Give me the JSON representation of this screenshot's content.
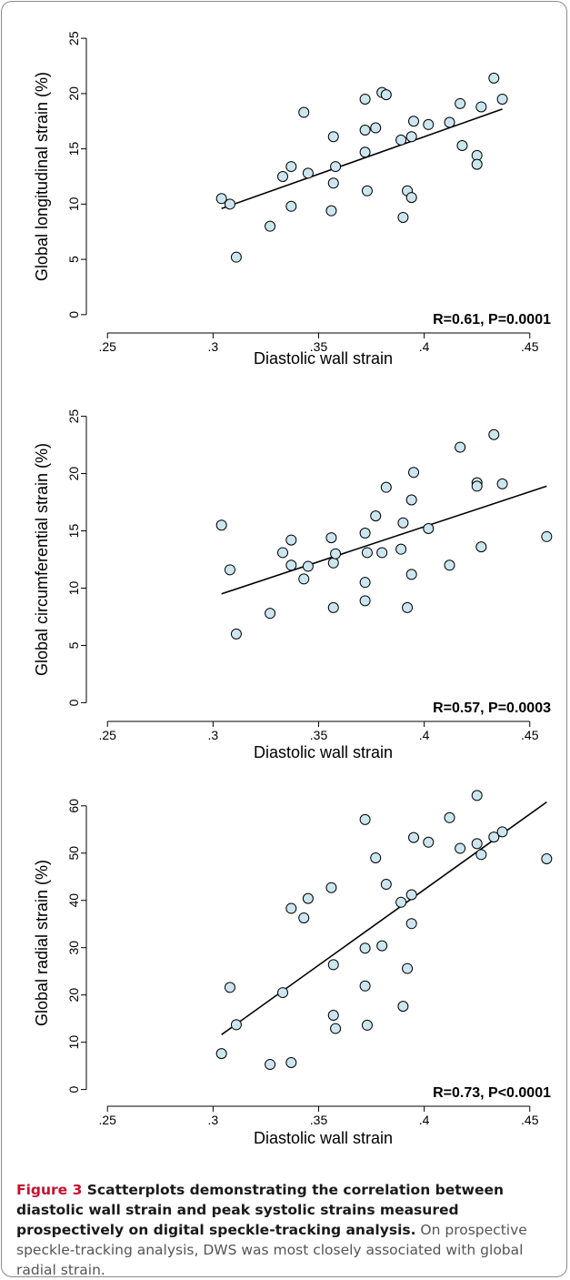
{
  "chart_data": [
    {
      "type": "scatter",
      "xlabel": "Diastolic wall strain",
      "ylabel": "Global longitudinal strain (%)",
      "xlim": [
        0.24,
        0.46
      ],
      "ylim": [
        -1,
        26
      ],
      "xticks": [
        ".25",
        ".3",
        ".35",
        ".4",
        ".45"
      ],
      "yticks": [
        "0",
        "5",
        "10",
        "15",
        "20",
        "25"
      ],
      "annotation": "R=0.61, P=0.0001",
      "points": [
        {
          "x": 0.304,
          "y": 10.5
        },
        {
          "x": 0.308,
          "y": 10.0
        },
        {
          "x": 0.311,
          "y": 5.2
        },
        {
          "x": 0.327,
          "y": 8.0
        },
        {
          "x": 0.333,
          "y": 12.5
        },
        {
          "x": 0.337,
          "y": 13.4
        },
        {
          "x": 0.337,
          "y": 9.8
        },
        {
          "x": 0.343,
          "y": 18.3
        },
        {
          "x": 0.345,
          "y": 12.8
        },
        {
          "x": 0.356,
          "y": 9.4
        },
        {
          "x": 0.357,
          "y": 16.1
        },
        {
          "x": 0.357,
          "y": 11.9
        },
        {
          "x": 0.358,
          "y": 13.4
        },
        {
          "x": 0.372,
          "y": 19.5
        },
        {
          "x": 0.372,
          "y": 16.7
        },
        {
          "x": 0.372,
          "y": 14.7
        },
        {
          "x": 0.373,
          "y": 11.2
        },
        {
          "x": 0.377,
          "y": 16.9
        },
        {
          "x": 0.38,
          "y": 20.1
        },
        {
          "x": 0.382,
          "y": 19.9
        },
        {
          "x": 0.389,
          "y": 15.8
        },
        {
          "x": 0.39,
          "y": 8.8
        },
        {
          "x": 0.392,
          "y": 11.2
        },
        {
          "x": 0.394,
          "y": 10.6
        },
        {
          "x": 0.394,
          "y": 16.1
        },
        {
          "x": 0.395,
          "y": 17.5
        },
        {
          "x": 0.402,
          "y": 17.2
        },
        {
          "x": 0.412,
          "y": 17.4
        },
        {
          "x": 0.417,
          "y": 19.1
        },
        {
          "x": 0.418,
          "y": 15.3
        },
        {
          "x": 0.425,
          "y": 14.4
        },
        {
          "x": 0.425,
          "y": 13.6
        },
        {
          "x": 0.427,
          "y": 18.8
        },
        {
          "x": 0.433,
          "y": 21.4
        },
        {
          "x": 0.437,
          "y": 19.5
        }
      ],
      "fit": {
        "x1": 0.304,
        "y1": 9.6,
        "x2": 0.437,
        "y2": 18.6
      }
    },
    {
      "type": "scatter",
      "xlabel": "Diastolic wall strain",
      "ylabel": "Global circumferential strain (%)",
      "xlim": [
        0.24,
        0.46
      ],
      "ylim": [
        -1,
        26
      ],
      "xticks": [
        ".25",
        ".3",
        ".35",
        ".4",
        ".45"
      ],
      "yticks": [
        "0",
        "5",
        "10",
        "15",
        "20",
        "25"
      ],
      "annotation": "R=0.57, P=0.0003",
      "points": [
        {
          "x": 0.304,
          "y": 15.5
        },
        {
          "x": 0.308,
          "y": 11.6
        },
        {
          "x": 0.311,
          "y": 6.0
        },
        {
          "x": 0.327,
          "y": 7.8
        },
        {
          "x": 0.333,
          "y": 13.1
        },
        {
          "x": 0.337,
          "y": 14.2
        },
        {
          "x": 0.337,
          "y": 12.0
        },
        {
          "x": 0.343,
          "y": 10.8
        },
        {
          "x": 0.345,
          "y": 11.9
        },
        {
          "x": 0.356,
          "y": 14.4
        },
        {
          "x": 0.357,
          "y": 12.2
        },
        {
          "x": 0.357,
          "y": 8.3
        },
        {
          "x": 0.358,
          "y": 13.0
        },
        {
          "x": 0.372,
          "y": 14.8
        },
        {
          "x": 0.372,
          "y": 10.5
        },
        {
          "x": 0.372,
          "y": 8.9
        },
        {
          "x": 0.373,
          "y": 13.1
        },
        {
          "x": 0.377,
          "y": 16.3
        },
        {
          "x": 0.38,
          "y": 13.1
        },
        {
          "x": 0.382,
          "y": 18.8
        },
        {
          "x": 0.389,
          "y": 13.4
        },
        {
          "x": 0.39,
          "y": 15.7
        },
        {
          "x": 0.392,
          "y": 8.3
        },
        {
          "x": 0.394,
          "y": 11.2
        },
        {
          "x": 0.394,
          "y": 17.7
        },
        {
          "x": 0.395,
          "y": 20.1
        },
        {
          "x": 0.402,
          "y": 15.2
        },
        {
          "x": 0.412,
          "y": 12.0
        },
        {
          "x": 0.417,
          "y": 22.3
        },
        {
          "x": 0.425,
          "y": 19.2
        },
        {
          "x": 0.425,
          "y": 18.9
        },
        {
          "x": 0.427,
          "y": 13.6
        },
        {
          "x": 0.433,
          "y": 23.4
        },
        {
          "x": 0.437,
          "y": 19.1
        },
        {
          "x": 0.458,
          "y": 14.5
        }
      ],
      "fit": {
        "x1": 0.304,
        "y1": 9.5,
        "x2": 0.458,
        "y2": 18.9
      }
    },
    {
      "type": "scatter",
      "xlabel": "Diastolic wall strain",
      "ylabel": "Global radial strain (%)",
      "xlim": [
        0.24,
        0.46
      ],
      "ylim": [
        -2,
        64
      ],
      "xticks": [
        ".25",
        ".3",
        ".35",
        ".4",
        ".45"
      ],
      "yticks": [
        "0",
        "10",
        "20",
        "30",
        "40",
        "50",
        "60"
      ],
      "annotation": "R=0.73, P<0.0001",
      "points": [
        {
          "x": 0.304,
          "y": 7.6
        },
        {
          "x": 0.308,
          "y": 21.6
        },
        {
          "x": 0.311,
          "y": 13.7
        },
        {
          "x": 0.327,
          "y": 5.3
        },
        {
          "x": 0.333,
          "y": 20.5
        },
        {
          "x": 0.337,
          "y": 38.3
        },
        {
          "x": 0.337,
          "y": 5.7
        },
        {
          "x": 0.343,
          "y": 36.3
        },
        {
          "x": 0.345,
          "y": 40.4
        },
        {
          "x": 0.356,
          "y": 42.7
        },
        {
          "x": 0.357,
          "y": 26.4
        },
        {
          "x": 0.357,
          "y": 15.7
        },
        {
          "x": 0.358,
          "y": 12.9
        },
        {
          "x": 0.372,
          "y": 57.1
        },
        {
          "x": 0.372,
          "y": 29.9
        },
        {
          "x": 0.372,
          "y": 21.9
        },
        {
          "x": 0.373,
          "y": 13.6
        },
        {
          "x": 0.377,
          "y": 49.0
        },
        {
          "x": 0.38,
          "y": 30.4
        },
        {
          "x": 0.382,
          "y": 43.4
        },
        {
          "x": 0.389,
          "y": 39.6
        },
        {
          "x": 0.39,
          "y": 17.6
        },
        {
          "x": 0.392,
          "y": 25.6
        },
        {
          "x": 0.394,
          "y": 35.1
        },
        {
          "x": 0.394,
          "y": 41.2
        },
        {
          "x": 0.395,
          "y": 53.3
        },
        {
          "x": 0.402,
          "y": 52.3
        },
        {
          "x": 0.412,
          "y": 57.5
        },
        {
          "x": 0.417,
          "y": 51.0
        },
        {
          "x": 0.425,
          "y": 62.2
        },
        {
          "x": 0.425,
          "y": 52.0
        },
        {
          "x": 0.427,
          "y": 49.7
        },
        {
          "x": 0.433,
          "y": 53.4
        },
        {
          "x": 0.437,
          "y": 54.5
        },
        {
          "x": 0.458,
          "y": 48.8
        }
      ],
      "fit": {
        "x1": 0.304,
        "y1": 11.6,
        "x2": 0.458,
        "y2": 60.8
      }
    }
  ],
  "caption": {
    "label": "Figure 3",
    "main": " Scatterplots demonstrating the correlation between diastolic wall strain and peak systolic strains measured prospectively on digital speckle-tracking analysis.",
    "body": " On prospective speckle-tracking analysis, DWS was most closely associated with global radial strain."
  }
}
